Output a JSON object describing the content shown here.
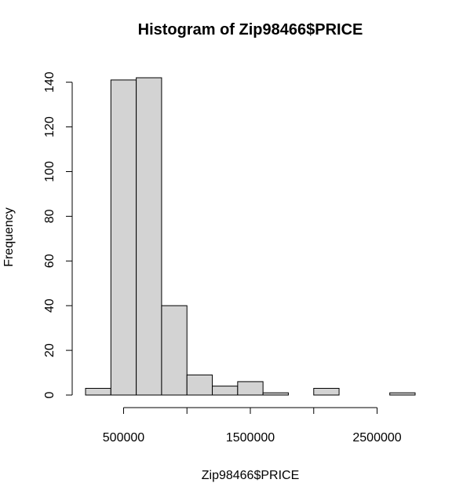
{
  "chart_data": {
    "type": "bar",
    "title": "Histogram of Zip98466$PRICE",
    "xlabel": "Zip98466$PRICE",
    "ylabel": "Frequency",
    "bins": [
      {
        "from": 200000,
        "to": 400000,
        "count": 3
      },
      {
        "from": 400000,
        "to": 600000,
        "count": 141
      },
      {
        "from": 600000,
        "to": 800000,
        "count": 142
      },
      {
        "from": 800000,
        "to": 1000000,
        "count": 40
      },
      {
        "from": 1000000,
        "to": 1200000,
        "count": 9
      },
      {
        "from": 1200000,
        "to": 1400000,
        "count": 4
      },
      {
        "from": 1400000,
        "to": 1600000,
        "count": 6
      },
      {
        "from": 1600000,
        "to": 1800000,
        "count": 1
      },
      {
        "from": 1800000,
        "to": 2000000,
        "count": 0
      },
      {
        "from": 2000000,
        "to": 2200000,
        "count": 3
      },
      {
        "from": 2200000,
        "to": 2400000,
        "count": 0
      },
      {
        "from": 2400000,
        "to": 2600000,
        "count": 0
      },
      {
        "from": 2600000,
        "to": 2800000,
        "count": 1
      }
    ],
    "x_ticks": [
      500000,
      1000000,
      1500000,
      2000000,
      2500000
    ],
    "x_tick_labels": [
      "500000",
      "",
      "1500000",
      "",
      "2500000"
    ],
    "y_ticks": [
      0,
      20,
      40,
      60,
      80,
      100,
      120,
      140
    ],
    "y_tick_labels": [
      "0",
      "20",
      "40",
      "60",
      "80",
      "100",
      "120",
      "140"
    ],
    "xlim": [
      200000,
      2800000
    ],
    "ylim": [
      0,
      142
    ],
    "grid": false,
    "colors": {
      "bar_fill": "#D3D3D3",
      "bar_stroke": "#000000",
      "axis": "#000000"
    }
  }
}
